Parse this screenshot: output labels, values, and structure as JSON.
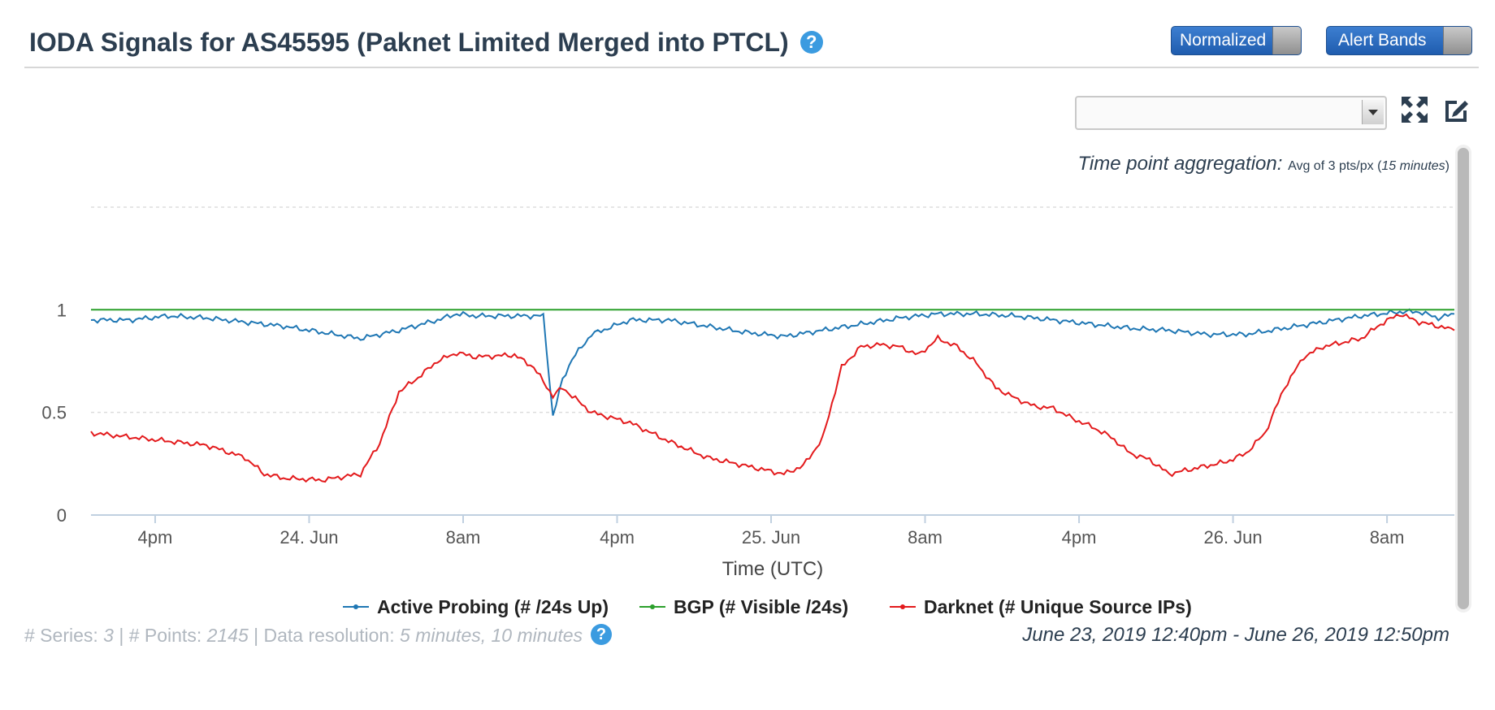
{
  "header": {
    "title": "IODA Signals for AS45595 (Paknet Limited Merged into PTCL)",
    "help_icon": "?",
    "toggle_normalized": "Normalized",
    "toggle_alert_bands": "Alert Bands"
  },
  "toolbar": {
    "select_value": "",
    "expand_icon": "expand-icon",
    "edit_icon": "edit-icon"
  },
  "aggregation": {
    "label": "Time point aggregation:",
    "value_prefix": "Avg of 3 pts/px (",
    "value_em": "15 minutes",
    "value_suffix": ")"
  },
  "footer": {
    "series_label": "# Series: ",
    "series_value": "3",
    "points_label": " | # Points: ",
    "points_value": "2145",
    "resolution_label": " | Data resolution: ",
    "resolution_value": "5 minutes, 10 minutes",
    "help_icon": "?",
    "date_range": "June 23, 2019 12:40pm - June 26, 2019 12:50pm"
  },
  "colors": {
    "active_probing": "#1f77b4",
    "bgp": "#2ca02c",
    "darknet": "#e31a1c",
    "grid": "#dddddd"
  },
  "chart_data": {
    "type": "line",
    "xlabel": "Time (UTC)",
    "ylabel": "",
    "ylim": [
      0,
      1.5
    ],
    "y_ticks": [
      "0",
      "0.5",
      "1"
    ],
    "y_tick_values": [
      0,
      0.5,
      1
    ],
    "x_ticks": [
      "4pm",
      "24. Jun",
      "8am",
      "4pm",
      "25. Jun",
      "8am",
      "4pm",
      "26. Jun",
      "8am"
    ],
    "x_tick_values": [
      3.333,
      11.333,
      19.333,
      27.333,
      35.333,
      43.333,
      51.333,
      59.333,
      67.333
    ],
    "x_range": [
      0,
      70.833
    ],
    "x_note": "hours since June 23, 2019 12:40pm",
    "grid": true,
    "legend_position": "bottom",
    "series": [
      {
        "name": "Active Probing (# /24s Up)",
        "x": [
          0,
          2,
          4,
          6,
          8,
          10,
          12,
          14,
          16,
          18,
          19,
          20,
          22,
          23.5,
          24,
          24.5,
          25,
          26,
          28,
          30,
          32,
          34,
          36,
          38,
          40,
          42,
          44,
          46,
          48,
          50,
          52,
          54,
          56,
          58,
          60,
          62,
          64,
          66,
          68,
          69,
          70,
          70.833
        ],
        "y": [
          0.95,
          0.95,
          0.97,
          0.96,
          0.94,
          0.92,
          0.89,
          0.86,
          0.9,
          0.95,
          0.98,
          0.97,
          0.97,
          0.97,
          0.48,
          0.66,
          0.76,
          0.88,
          0.95,
          0.95,
          0.92,
          0.89,
          0.87,
          0.9,
          0.93,
          0.96,
          0.98,
          0.98,
          0.97,
          0.95,
          0.93,
          0.91,
          0.9,
          0.88,
          0.88,
          0.91,
          0.94,
          0.97,
          0.99,
          0.99,
          0.96,
          0.98
        ]
      },
      {
        "name": "BGP (# Visible /24s)",
        "x": [
          0,
          70.833
        ],
        "y": [
          1.0,
          1.0
        ]
      },
      {
        "name": "Darknet (# Unique Source IPs)",
        "x": [
          0,
          2,
          4,
          6,
          8,
          9,
          10,
          12,
          14,
          15,
          16,
          17,
          18,
          19,
          20,
          22,
          23,
          24,
          24.5,
          25,
          26,
          28,
          30,
          32,
          34,
          35,
          36,
          37,
          38,
          39,
          40,
          41,
          42,
          43,
          44,
          45,
          46,
          47,
          48,
          49,
          50,
          51,
          52,
          53,
          54,
          55,
          56,
          57,
          58,
          59,
          60,
          61,
          62,
          63,
          64,
          65,
          66,
          67,
          68,
          69,
          70,
          70.833
        ],
        "y": [
          0.4,
          0.38,
          0.36,
          0.34,
          0.28,
          0.2,
          0.18,
          0.17,
          0.2,
          0.35,
          0.6,
          0.67,
          0.75,
          0.79,
          0.77,
          0.78,
          0.72,
          0.58,
          0.62,
          0.58,
          0.5,
          0.45,
          0.36,
          0.28,
          0.24,
          0.22,
          0.2,
          0.24,
          0.37,
          0.72,
          0.82,
          0.83,
          0.82,
          0.78,
          0.86,
          0.82,
          0.74,
          0.62,
          0.57,
          0.53,
          0.52,
          0.47,
          0.43,
          0.38,
          0.3,
          0.27,
          0.2,
          0.22,
          0.24,
          0.26,
          0.3,
          0.4,
          0.62,
          0.77,
          0.82,
          0.84,
          0.86,
          0.93,
          0.98,
          0.94,
          0.92,
          0.9
        ]
      }
    ]
  }
}
